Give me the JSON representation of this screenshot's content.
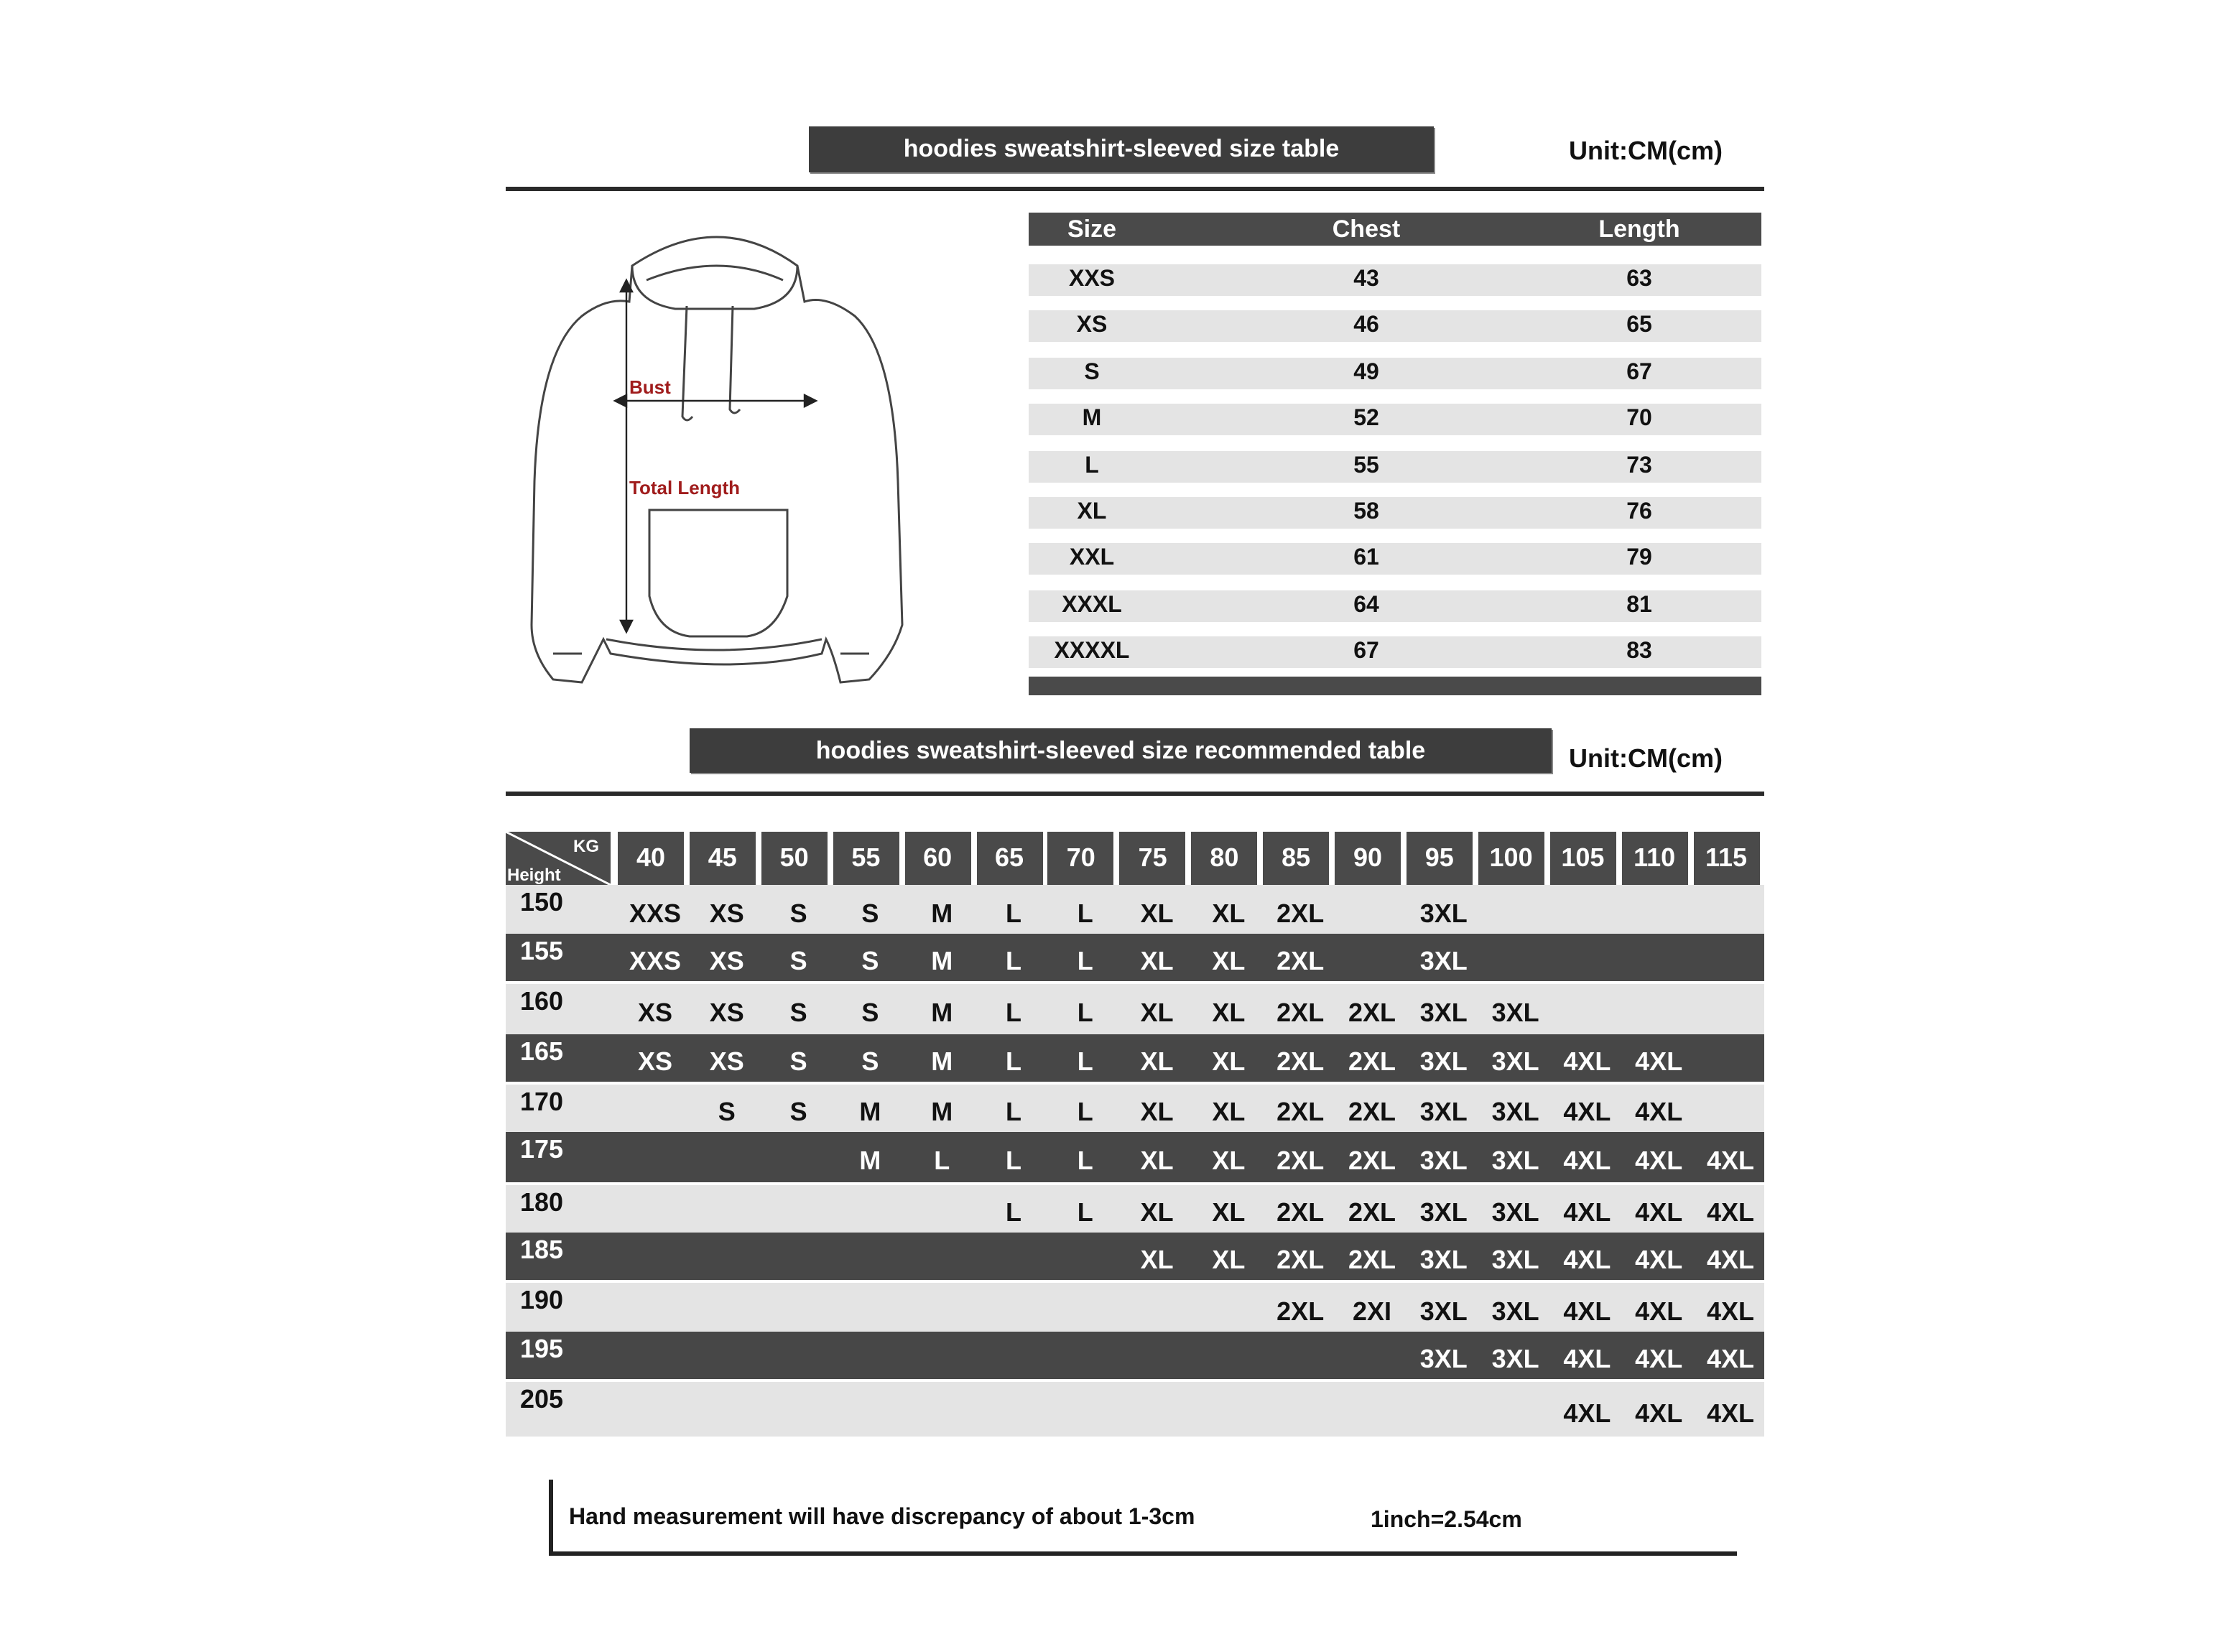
{
  "size_table": {
    "title": "hoodies sweatshirt-sleeved size  table",
    "unit": "Unit:CM(cm)",
    "headers": [
      "Size",
      "Chest",
      "Length"
    ],
    "rows": [
      [
        "XXS",
        "43",
        "63"
      ],
      [
        "XS",
        "46",
        "65"
      ],
      [
        "S",
        "49",
        "67"
      ],
      [
        "M",
        "52",
        "70"
      ],
      [
        "L",
        "55",
        "73"
      ],
      [
        "XL",
        "58",
        "76"
      ],
      [
        "XXL",
        "61",
        "79"
      ],
      [
        "XXXL",
        "64",
        "81"
      ],
      [
        "XXXXL",
        "67",
        "83"
      ]
    ]
  },
  "diagram": {
    "bust_label": "Bust",
    "length_label": "Total Length",
    "label_color": "#a01c1c"
  },
  "recommended_table": {
    "title": "hoodies sweatshirt-sleeved size recommended table",
    "unit": "Unit:CM(cm)",
    "corner_top": "KG",
    "corner_bottom": "Height",
    "weights": [
      "40",
      "45",
      "50",
      "55",
      "60",
      "65",
      "70",
      "75",
      "80",
      "85",
      "90",
      "95",
      "100",
      "105",
      "110",
      "115"
    ],
    "rows": [
      {
        "height": "150",
        "sizes": [
          "XXS",
          "XS",
          "S",
          "S",
          "M",
          "L",
          "L",
          "XL",
          "XL",
          "2XL",
          "",
          "3XL",
          "",
          "",
          "",
          ""
        ]
      },
      {
        "height": "155",
        "sizes": [
          "XXS",
          "XS",
          "S",
          "S",
          "M",
          "L",
          "L",
          "XL",
          "XL",
          "2XL",
          "",
          "3XL",
          "",
          "",
          "",
          ""
        ]
      },
      {
        "height": "160",
        "sizes": [
          "XS",
          "XS",
          "S",
          "S",
          "M",
          "L",
          "L",
          "XL",
          "XL",
          "2XL",
          "2XL",
          "3XL",
          "3XL",
          "",
          "",
          ""
        ]
      },
      {
        "height": "165",
        "sizes": [
          "XS",
          "XS",
          "S",
          "S",
          "M",
          "L",
          "L",
          "XL",
          "XL",
          "2XL",
          "2XL",
          "3XL",
          "3XL",
          "4XL",
          "4XL",
          ""
        ]
      },
      {
        "height": "170",
        "sizes": [
          "",
          "S",
          "S",
          "M",
          "M",
          "L",
          "L",
          "XL",
          "XL",
          "2XL",
          "2XL",
          "3XL",
          "3XL",
          "4XL",
          "4XL",
          ""
        ]
      },
      {
        "height": "175",
        "sizes": [
          "",
          "",
          "",
          "M",
          "L",
          "L",
          "L",
          "XL",
          "XL",
          "2XL",
          "2XL",
          "3XL",
          "3XL",
          "4XL",
          "4XL",
          "4XL"
        ]
      },
      {
        "height": "180",
        "sizes": [
          "",
          "",
          "",
          "",
          "",
          "L",
          "L",
          "XL",
          "XL",
          "2XL",
          "2XL",
          "3XL",
          "3XL",
          "4XL",
          "4XL",
          "4XL"
        ]
      },
      {
        "height": "185",
        "sizes": [
          "",
          "",
          "",
          "",
          "",
          "",
          "",
          "XL",
          "XL",
          "2XL",
          "2XL",
          "3XL",
          "3XL",
          "4XL",
          "4XL",
          "4XL"
        ]
      },
      {
        "height": "190",
        "sizes": [
          "",
          "",
          "",
          "",
          "",
          "",
          "",
          "",
          "",
          "2XL",
          "2XI",
          "3XL",
          "3XL",
          "4XL",
          "4XL",
          "4XL"
        ]
      },
      {
        "height": "195",
        "sizes": [
          "",
          "",
          "",
          "",
          "",
          "",
          "",
          "",
          "",
          "",
          "",
          "3XL",
          "3XL",
          "4XL",
          "4XL",
          "4XL"
        ]
      },
      {
        "height": "205",
        "sizes": [
          "",
          "",
          "",
          "",
          "",
          "",
          "",
          "",
          "",
          "",
          "",
          "",
          "",
          "4XL",
          "4XL",
          "4XL"
        ]
      }
    ]
  },
  "footer": {
    "note": "Hand measurement will have discrepancy of about  1-3cm",
    "conversion": "1inch=2.54cm"
  }
}
